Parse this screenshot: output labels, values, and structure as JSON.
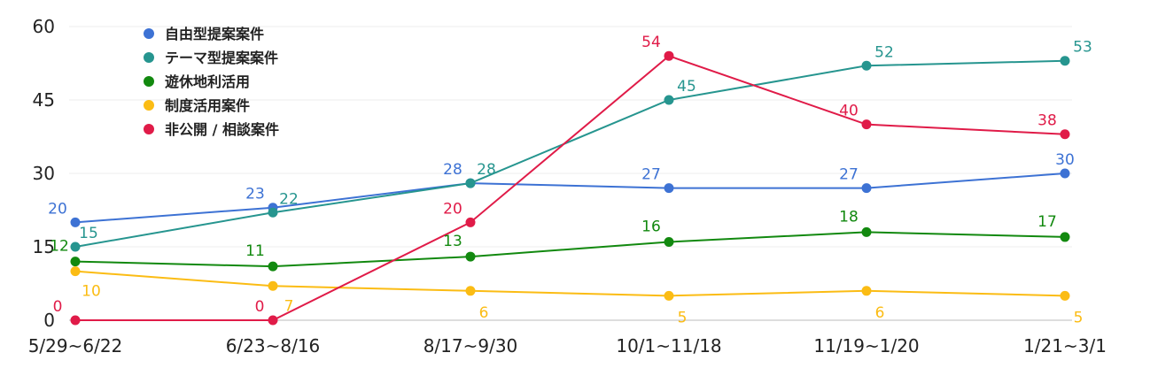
{
  "chart_data": {
    "type": "line",
    "categories": [
      "5/29~6/22",
      "6/23~8/16",
      "8/17~9/30",
      "10/1~11/18",
      "11/19~1/20",
      "1/21~3/1"
    ],
    "ylim": [
      0,
      60
    ],
    "yticks": [
      "0",
      "15",
      "30",
      "45",
      "60"
    ],
    "grid": true,
    "legend_position": "top-left",
    "series": [
      {
        "name": "自由型提案案件",
        "color": "#3d72d4",
        "values": [
          20,
          23,
          28,
          27,
          27,
          30
        ]
      },
      {
        "name": "テーマ型提案案件",
        "color": "#26958f",
        "values": [
          15,
          22,
          28,
          45,
          52,
          53
        ]
      },
      {
        "name": "遊休地利活用",
        "color": "#12890f",
        "values": [
          12,
          11,
          13,
          16,
          18,
          17
        ]
      },
      {
        "name": "制度活用案件",
        "color": "#fbbc14",
        "values": [
          10,
          7,
          6,
          5,
          6,
          5
        ]
      },
      {
        "name": "非公開 / 相談案件",
        "color": "#e01b48",
        "values": [
          0,
          0,
          20,
          54,
          40,
          38
        ]
      }
    ]
  }
}
